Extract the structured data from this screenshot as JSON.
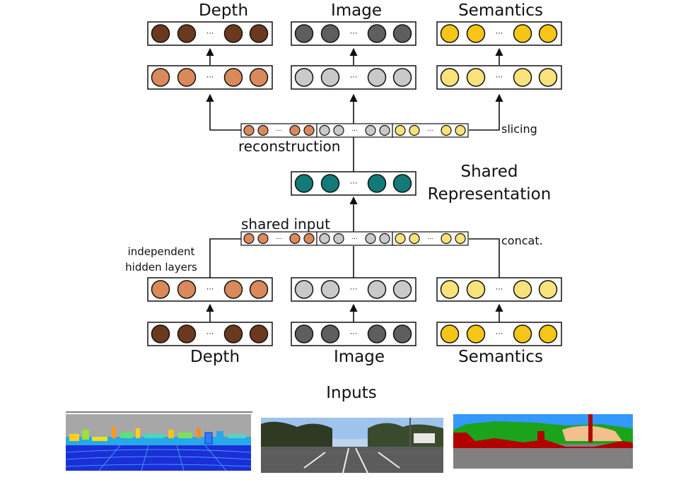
{
  "labels": {
    "top_depth": "Depth",
    "top_image": "Image",
    "top_semantics": "Semantics",
    "slicing": "slicing",
    "reconstruction": "reconstruction",
    "shared_rep_line1": "Shared",
    "shared_rep_line2": "Representation",
    "shared_input": "shared input",
    "concat": "concat.",
    "independent_line1": "independent",
    "independent_line2": "hidden layers",
    "bottom_depth": "Depth",
    "bottom_image": "Image",
    "bottom_semantics": "Semantics",
    "inputs": "Inputs",
    "ellipsis": "···"
  },
  "colors": {
    "depth_dark": "#6b3a1e",
    "depth_light": "#d9895a",
    "image_dark": "#5e5e5e",
    "image_light": "#c9c9c9",
    "sem_dark": "#f5c518",
    "sem_light": "#f8e27a",
    "shared": "#127a78"
  },
  "thumbnails": {
    "depth": "depth-map",
    "image": "street-photo",
    "semantics": "semantic-segmentation"
  }
}
